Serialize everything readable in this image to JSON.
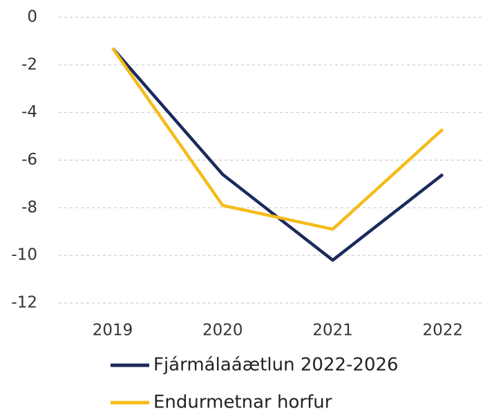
{
  "chart_data": {
    "type": "line",
    "categories": [
      "2019",
      "2020",
      "2021",
      "2022"
    ],
    "series": [
      {
        "name": "Fjármálaáætlun 2022-2026",
        "color": "#1b2a5c",
        "values": [
          -1.3,
          -6.6,
          -10.2,
          -6.6
        ]
      },
      {
        "name": "Endurmetnar horfur",
        "color": "#f5bb1a",
        "values": [
          -1.3,
          -7.9,
          -8.9,
          -4.7
        ]
      }
    ],
    "ylim": [
      -12,
      0
    ],
    "yticks": [
      0,
      -2,
      -4,
      -6,
      -8,
      -10,
      -12
    ],
    "grid": true,
    "legend": "bottom"
  }
}
